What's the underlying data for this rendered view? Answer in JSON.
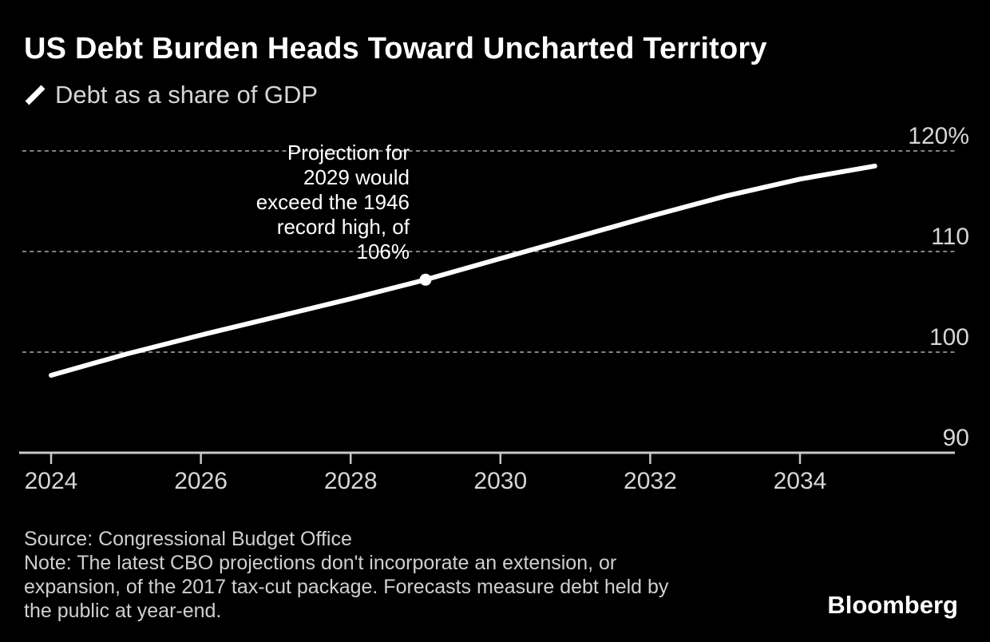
{
  "chart_data": {
    "type": "line",
    "title": "US Debt Burden Heads Toward Uncharted Territory",
    "series_label": "Debt as a share of GDP",
    "x": [
      2024,
      2025,
      2026,
      2027,
      2028,
      2029,
      2030,
      2031,
      2032,
      2033,
      2034,
      2035
    ],
    "series": [
      {
        "name": "Debt as a share of GDP",
        "values": [
          97.7,
          99.8,
          101.7,
          103.5,
          105.3,
          107.2,
          109.3,
          111.4,
          113.5,
          115.5,
          117.2,
          118.5
        ]
      }
    ],
    "highlight_point": {
      "x": 2029,
      "value": 107.2
    },
    "annotation": {
      "lines": [
        "Projection for",
        "2029 would",
        "exceed the 1946",
        "record high, of",
        "106%"
      ]
    },
    "x_ticks": [
      2024,
      2026,
      2028,
      2030,
      2032,
      2034
    ],
    "y_ticks": [
      {
        "value": 120,
        "label": "120%",
        "gridline": true
      },
      {
        "value": 110,
        "label": "110",
        "gridline": true
      },
      {
        "value": 100,
        "label": "100",
        "gridline": true
      },
      {
        "value": 90,
        "label": "90",
        "gridline": false
      }
    ],
    "xlim": [
      2024,
      2035
    ],
    "ylim": [
      90,
      121.5
    ],
    "grid": "horizontal-dashed",
    "legend_position": "top-left",
    "y_axis_side": "right"
  },
  "footer": {
    "source": "Source: Congressional Budget Office",
    "note_lines": [
      "Note: The latest CBO projections don't incorporate an extension, or",
      "expansion, of the 2017 tax-cut package. Forecasts measure debt held by",
      "the public at year-end."
    ]
  },
  "branding": {
    "logo": "Bloomberg"
  },
  "colors": {
    "background": "#000000",
    "title": "#ffffff",
    "legend_text": "#d6d6d6",
    "axis_labels": "#d6d6d6",
    "gridline": "#828282",
    "axis_line": "#c9c9c9",
    "data_line": "#ffffff",
    "annotation_text": "#ffffff",
    "footer_text": "#cfcfcf",
    "brand_text": "#ffffff"
  }
}
